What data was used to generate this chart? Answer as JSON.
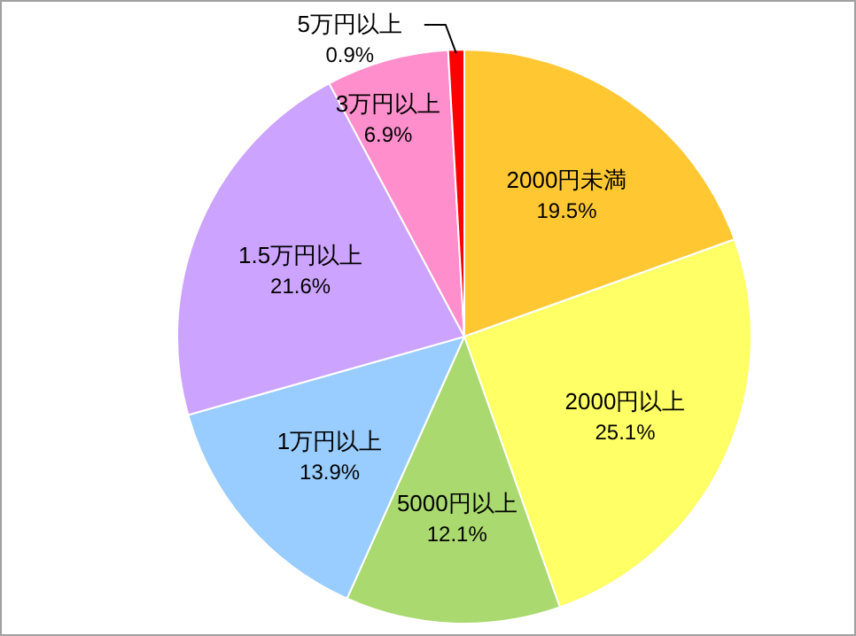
{
  "chart_data": {
    "type": "pie",
    "categories": [
      "2000円未満",
      "2000円以上",
      "5000円以上",
      "1万円以上",
      "1.5万円以上",
      "3万円以上",
      "5万円以上"
    ],
    "values": [
      19.5,
      25.1,
      12.1,
      13.9,
      21.6,
      6.9,
      0.9
    ],
    "value_labels": [
      "19.5%",
      "25.1%",
      "12.1%",
      "13.9%",
      "21.6%",
      "6.9%",
      "0.9%"
    ],
    "colors": [
      "#ffc833",
      "#ffff66",
      "#a9d96f",
      "#99ccff",
      "#cca3ff",
      "#ff8fcc",
      "#ff0000"
    ]
  }
}
